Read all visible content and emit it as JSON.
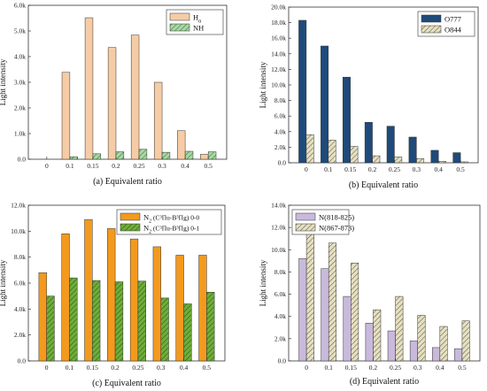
{
  "chart_data": [
    {
      "type": "bar",
      "caption": "(a) Equivalent ratio",
      "ylabel": "Light intensity",
      "categories": [
        "0",
        "0.1",
        "0.15",
        "0.2",
        "0.25",
        "0.3",
        "0.4",
        "0.5"
      ],
      "yticks": [
        "0.0",
        "1.0k",
        "2.0k",
        "3.0k",
        "4.0k",
        "5.0k",
        "6.0k"
      ],
      "ylim": [
        0,
        6.2
      ],
      "unit_scale": 1000,
      "legend": [
        {
          "label": "H",
          "sub": "α",
          "color": "#f6ccA6",
          "pattern": "solid"
        },
        {
          "label": "NH",
          "sub": "",
          "color": "#9fd49c",
          "pattern": "hatch"
        }
      ],
      "legend_position": "top-right",
      "series": [
        {
          "name": "Hα",
          "values": [
            0,
            3.5,
            5.7,
            4.5,
            5.0,
            3.1,
            1.15,
            0.2
          ]
        },
        {
          "name": "NH",
          "values": [
            0,
            0.1,
            0.22,
            0.3,
            0.4,
            0.28,
            0.32,
            0.3
          ]
        }
      ]
    },
    {
      "type": "bar",
      "caption": "(b) Equivalent ratio",
      "ylabel": "Light intensity",
      "categories": [
        "0",
        "0.1",
        "0.15",
        "0.2",
        "0.25",
        "0.3",
        "0.4",
        "0.5"
      ],
      "yticks": [
        "0.0",
        "2.0k",
        "4.0k",
        "6.0k",
        "8.0k",
        "10.0k",
        "12.0k",
        "14.0k",
        "16.0k",
        "18.0k",
        "20.0k"
      ],
      "ylim": [
        0,
        20
      ],
      "unit_scale": 1000,
      "legend": [
        {
          "label": "O777",
          "sub": "",
          "color": "#1f4a7a",
          "pattern": "solid"
        },
        {
          "label": "O844",
          "sub": "",
          "color": "#d9d3b4",
          "pattern": "hatch"
        }
      ],
      "legend_position": "top-right",
      "series": [
        {
          "name": "O777",
          "values": [
            18.3,
            15.0,
            11.0,
            5.2,
            4.7,
            3.3,
            1.6,
            1.3
          ]
        },
        {
          "name": "O844",
          "values": [
            3.6,
            2.9,
            2.1,
            0.9,
            0.75,
            0.55,
            0.18,
            0.12
          ]
        }
      ]
    },
    {
      "type": "bar",
      "caption": "(c) Equivalent ratio",
      "ylabel": "Light intensity",
      "categories": [
        "0",
        "0.1",
        "0.15",
        "0.2",
        "0.25",
        "0.3",
        "0.4",
        "0.5"
      ],
      "yticks": [
        "0.0",
        "2.0k",
        "4.0k",
        "6.0k",
        "8.0k",
        "10.0k",
        "12.0k"
      ],
      "ylim": [
        0,
        12
      ],
      "unit_scale": 1000,
      "legend": [
        {
          "label": "N",
          "sub": "2",
          "tail": " (C³Πu-B³Πg) 0-0",
          "color": "#f39a1e",
          "pattern": "solid"
        },
        {
          "label": "N",
          "sub": "2",
          "tail": " (C³Πu-B³Πg) 0-1",
          "color": "#5a9a2c",
          "pattern": "hatch"
        }
      ],
      "legend_position": "top-right",
      "series": [
        {
          "name": "N2 (C³Πu-B³Πg) 0-0",
          "values": [
            6.8,
            9.8,
            10.9,
            10.2,
            9.4,
            8.8,
            8.15,
            8.15
          ]
        },
        {
          "name": "N2 (C³Πu-B³Πg) 0-1",
          "values": [
            5.0,
            6.4,
            6.2,
            6.1,
            6.15,
            4.85,
            4.4,
            5.3
          ]
        }
      ]
    },
    {
      "type": "bar",
      "caption": "(d) Equivalent ratio",
      "ylabel": "Light intensity",
      "categories": [
        "0",
        "0.1",
        "0.15",
        "0.2",
        "0.25",
        "0.3",
        "0.4",
        "0.5"
      ],
      "yticks": [
        "0.0",
        "2.0k",
        "4.0k",
        "6.0k",
        "8.0k",
        "10.0k",
        "12.0k",
        "14.0k"
      ],
      "ylim": [
        0,
        14
      ],
      "unit_scale": 1000,
      "legend": [
        {
          "label": "N(818-825)",
          "sub": "",
          "color": "#c9b9dc",
          "pattern": "solid"
        },
        {
          "label": "N(867-873)",
          "sub": "",
          "color": "#d6d2b8",
          "pattern": "hatch"
        }
      ],
      "legend_position": "top-left",
      "series": [
        {
          "name": "N(818-825)",
          "values": [
            9.2,
            8.3,
            5.8,
            3.4,
            2.7,
            1.8,
            1.2,
            1.1
          ]
        },
        {
          "name": "N(867-873)",
          "values": [
            12.6,
            10.6,
            8.8,
            4.6,
            5.8,
            4.1,
            3.1,
            3.6
          ]
        }
      ]
    }
  ]
}
